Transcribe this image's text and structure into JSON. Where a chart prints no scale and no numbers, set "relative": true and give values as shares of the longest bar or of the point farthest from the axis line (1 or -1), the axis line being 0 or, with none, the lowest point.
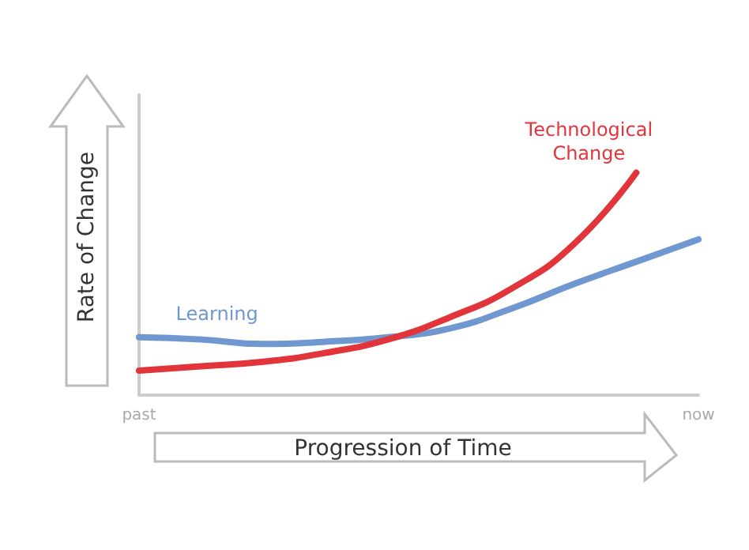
{
  "chart_data": {
    "type": "line",
    "relative": true,
    "xlabel": "Progression of Time",
    "ylabel": "Rate of Change",
    "categories": [
      "past",
      null,
      null,
      null,
      null,
      null,
      null,
      null,
      null,
      "now"
    ],
    "grid": false,
    "legend": false,
    "marker": "none",
    "line_style": "solid",
    "series": [
      {
        "name": "Learning",
        "color": "#6f97d0",
        "values": [
          0.26,
          0.25,
          0.23,
          0.24,
          0.26,
          0.3,
          0.39,
          0.5,
          0.6,
          0.7
        ]
      },
      {
        "name": "Technological Change",
        "color": "#e2353b",
        "values": [
          0.11,
          0.13,
          0.15,
          0.19,
          0.25,
          0.35,
          0.48,
          0.68,
          1,
          null
        ]
      }
    ]
  }
}
